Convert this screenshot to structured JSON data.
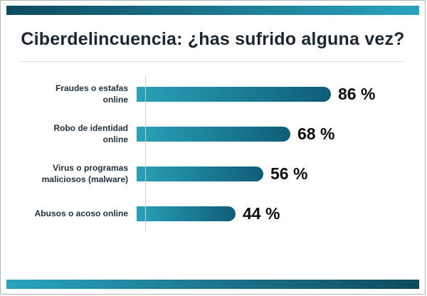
{
  "slide": {
    "title": "Ciberdelincuencia: ¿has sufrido alguna vez?"
  },
  "colors": {
    "strip_dark": "#0e4a5e",
    "strip_light": "#2aa3bd",
    "bar_light": "#29a2b7",
    "bar_dark": "#0f5d79",
    "title_text": "#1c2630",
    "label_text": "#23313d",
    "value_text": "#0d0d0d"
  },
  "chart_data": {
    "type": "bar",
    "orientation": "horizontal",
    "title": "Ciberdelincuencia: ¿has sufrido alguna vez?",
    "categories": [
      "Fraudes o estafas\nonline",
      "Robo de identidad\nonline",
      "Virus o programas\nmaliciosos (malware)",
      "Abusos o acoso online"
    ],
    "values": [
      86,
      68,
      56,
      44
    ],
    "unit": "%",
    "value_labels": [
      "86 %",
      "68 %",
      "56 %",
      "44 %"
    ],
    "xlim": [
      0,
      100
    ],
    "grid": false,
    "legend": false
  }
}
